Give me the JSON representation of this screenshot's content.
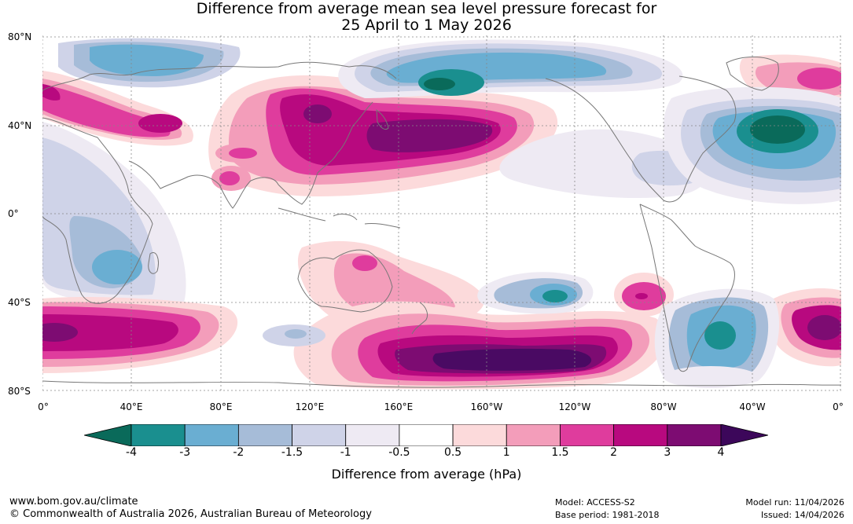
{
  "title": {
    "line1": "Difference from average mean sea level pressure forecast for",
    "line2": "25 April to 1 May 2026"
  },
  "map": {
    "lat_labels": [
      "80°N",
      "40°N",
      "0°",
      "40°S",
      "80°S"
    ],
    "lon_labels": [
      "0°",
      "40°E",
      "80°E",
      "120°E",
      "160°E",
      "160°W",
      "120°W",
      "80°W",
      "40°W",
      "0°"
    ],
    "anomaly_regions": [
      {
        "region": "North Pacific / East Asia",
        "value_hPa": 4
      },
      {
        "region": "Southern Ocean south of Pacific",
        "value_hPa": 4
      },
      {
        "region": "North Atlantic",
        "value_hPa": -4
      },
      {
        "region": "Bering Sea",
        "value_hPa": -4
      },
      {
        "region": "South Atlantic",
        "value_hPa": -3
      },
      {
        "region": "Southern Indian Ocean",
        "value_hPa": 3
      },
      {
        "region": "South Pacific (central)",
        "value_hPa": -3
      }
    ]
  },
  "colorbar": {
    "ticks": [
      "-4",
      "-3",
      "-2",
      "-1.5",
      "-1",
      "-0.5",
      "0.5",
      "1",
      "1.5",
      "2",
      "3",
      "4"
    ],
    "colors": [
      "#1a8f8f",
      "#6aaed2",
      "#a6bcd8",
      "#cfd3e8",
      "#eeeaf3",
      "#ffffff",
      "#fcdadb",
      "#f39dba",
      "#df3c9d",
      "#b8097f",
      "#7d0c72",
      "#4a0a63"
    ],
    "low_extend_color": "#0a6a5a",
    "high_extend_color": "#3c075a",
    "label": "Difference from average (hPa)"
  },
  "footer": {
    "url": "www.bom.gov.au/climate",
    "copyright": "© Commonwealth of Australia 2026, Australian Bureau of Meteorology",
    "model": "Model: ACCESS-S2",
    "base_period": "Base period: 1981-2018",
    "model_run": "Model run: 11/04/2026",
    "issued": "Issued: 14/04/2026"
  }
}
